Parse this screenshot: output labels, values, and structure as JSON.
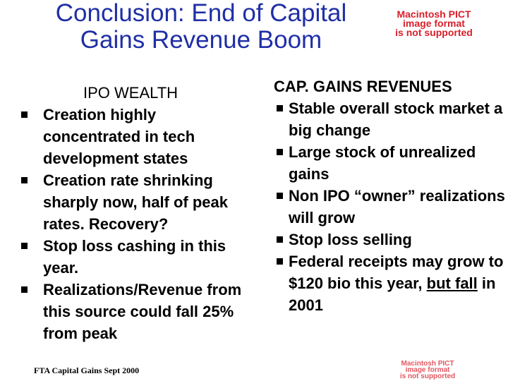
{
  "title": {
    "line1": "Conclusion: End of Capital",
    "line2": "Gains Revenue Boom"
  },
  "pict_placeholder": {
    "line1": "Macintosh PICT",
    "line2": "image format",
    "line3": "is not supported"
  },
  "left": {
    "heading": "IPO WEALTH",
    "items": [
      "Creation highly concentrated in tech development states",
      "Creation rate shrinking sharply now, half of peak rates. Recovery?",
      "Stop loss cashing in this year.",
      "Realizations/Revenue from this source could fall 25% from peak"
    ]
  },
  "right": {
    "heading": "CAP. GAINS REVENUES",
    "items": [
      "Stable overall stock market a big change",
      "Large stock of unrealized gains",
      "Non IPO “owner” realizations will grow",
      "Stop loss selling"
    ],
    "last_item": {
      "before": "Federal receipts may grow to $120 bio this year, ",
      "underlined": "but fall",
      "after": " in 2001"
    }
  },
  "footer": "FTA Capital Gains Sept 2000",
  "colors": {
    "title": "#1f2fa6",
    "placeholder": "#d81e2a",
    "text": "#000000"
  }
}
